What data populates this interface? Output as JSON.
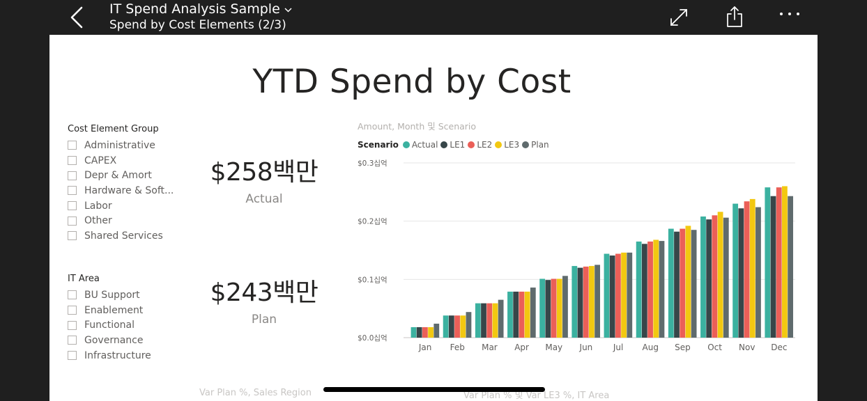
{
  "header": {
    "title": "IT Spend Analysis Sample",
    "subtitle": "Spend by Cost Elements (2/3)"
  },
  "report": {
    "title": "YTD Spend by Cost",
    "slicer_cost": {
      "heading": "Cost Element Group",
      "items": [
        "Administrative",
        "CAPEX",
        "Depr & Amort",
        "Hardware & Soft...",
        "Labor",
        "Other",
        "Shared Services"
      ]
    },
    "slicer_area": {
      "heading": "IT Area",
      "items": [
        "BU Support",
        "Enablement",
        "Functional",
        "Governance",
        "Infrastructure"
      ]
    },
    "cards": [
      {
        "value": "$258백만",
        "label": "Actual"
      },
      {
        "value": "$243백만",
        "label": "Plan"
      }
    ],
    "chart_subtitle": "Amount, Month 및 Scenario",
    "legend_title": "Scenario",
    "bottom_labels": [
      "Var Plan %, Sales Region",
      "Var Plan % 및 Var LE3 %, IT Area"
    ]
  },
  "colors": {
    "Actual": "#3bb1a0",
    "LE1": "#374649",
    "LE2": "#eb5f58",
    "LE3": "#f2c811",
    "Plan": "#5f6b6d"
  },
  "chart_data": {
    "type": "bar",
    "categories": [
      "Jan",
      "Feb",
      "Mar",
      "Apr",
      "May",
      "Jun",
      "Jul",
      "Aug",
      "Sep",
      "Oct",
      "Nov",
      "Dec"
    ],
    "ylim": [
      0,
      0.3
    ],
    "yticks": [
      "$0.0십억",
      "$0.1십억",
      "$0.2십억",
      "$0.3십억"
    ],
    "series": [
      {
        "name": "Actual",
        "values": [
          0.018,
          0.038,
          0.059,
          0.079,
          0.101,
          0.123,
          0.144,
          0.165,
          0.187,
          0.208,
          0.23,
          0.258
        ]
      },
      {
        "name": "LE1",
        "values": [
          0.018,
          0.038,
          0.059,
          0.079,
          0.099,
          0.12,
          0.141,
          0.161,
          0.182,
          0.203,
          0.222,
          0.243
        ]
      },
      {
        "name": "LE2",
        "values": [
          0.018,
          0.038,
          0.059,
          0.079,
          0.101,
          0.122,
          0.144,
          0.165,
          0.187,
          0.21,
          0.234,
          0.258
        ]
      },
      {
        "name": "LE3",
        "values": [
          0.018,
          0.038,
          0.059,
          0.079,
          0.101,
          0.123,
          0.146,
          0.168,
          0.192,
          0.216,
          0.238,
          0.26
        ]
      },
      {
        "name": "Plan",
        "values": [
          0.024,
          0.044,
          0.065,
          0.086,
          0.106,
          0.125,
          0.146,
          0.166,
          0.185,
          0.206,
          0.224,
          0.243
        ]
      }
    ]
  }
}
